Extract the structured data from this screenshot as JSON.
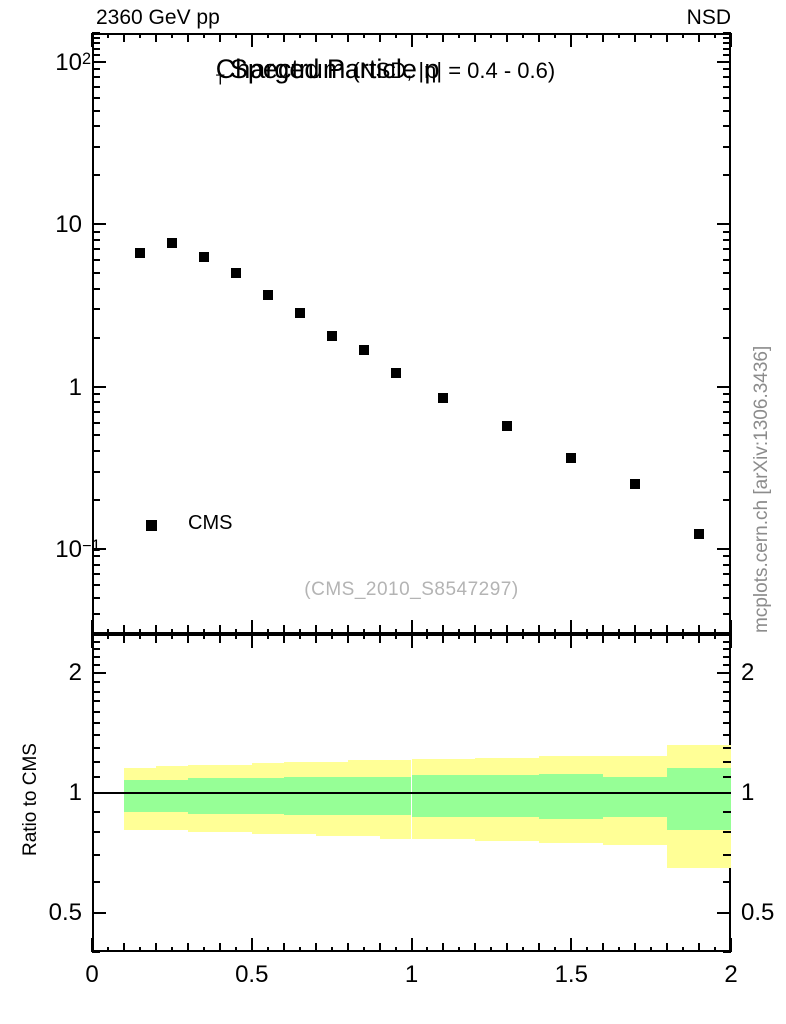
{
  "header": {
    "left": "2360 GeV pp",
    "right": "NSD"
  },
  "title": {
    "part1": "Charged Particle p",
    "sub": "T",
    "part2": "Spectrum",
    "paren": "(NSD, |η| = 0.4 - 0.6)"
  },
  "legend": {
    "label": "CMS",
    "marker": "black-filled-square"
  },
  "watermark": {
    "text": "(CMS_2010_S8547297)"
  },
  "sidenote": {
    "text": "mcplots.cern.ch [arXiv:1306.3436]"
  },
  "colors": {
    "band_outer": "#ffff96",
    "band_inner": "#96ff96",
    "marker": "#000000",
    "frame": "#000000",
    "watermark_gray": "#b4b4b4",
    "sidenote_gray": "#8c8c8c"
  },
  "chart_data": [
    {
      "type": "scatter",
      "panel": "main",
      "title": "Charged Particle pT Spectrum (NSD, |eta| = 0.4 - 0.6)",
      "x_axis": {
        "lim": [
          0,
          2
        ],
        "minor_step": 0.05,
        "medium_step": 0.1,
        "major_step": 0.5,
        "labels_visible": false
      },
      "y_axis": {
        "scale": "log",
        "lim": [
          0.03,
          150
        ],
        "labeled_ticks": [
          {
            "v": 100,
            "label": "10^2"
          },
          {
            "v": 10,
            "label": "10"
          },
          {
            "v": 1,
            "label": "1"
          },
          {
            "v": 0.1,
            "label": "10^−1"
          }
        ]
      },
      "series": [
        {
          "name": "CMS",
          "marker": "black-filled-square",
          "points": [
            [
              0.15,
              6.6
            ],
            [
              0.25,
              7.7
            ],
            [
              0.35,
              6.3
            ],
            [
              0.45,
              5.0
            ],
            [
              0.55,
              3.65
            ],
            [
              0.65,
              2.85
            ],
            [
              0.75,
              2.05
            ],
            [
              0.85,
              1.68
            ],
            [
              0.95,
              1.22
            ],
            [
              1.1,
              0.85
            ],
            [
              1.3,
              0.57
            ],
            [
              1.5,
              0.365
            ],
            [
              1.7,
              0.25
            ],
            [
              1.9,
              0.123
            ]
          ]
        }
      ]
    },
    {
      "type": "band-ratio",
      "panel": "ratio",
      "ylabel": "Ratio to CMS",
      "reference_line": 1.0,
      "x_axis": {
        "lim": [
          0,
          2
        ],
        "minor_step": 0.05,
        "medium_step": 0.1,
        "major_step": 0.5,
        "labeled_ticks": [
          {
            "v": 0,
            "label": "0"
          },
          {
            "v": 0.5,
            "label": "0.5"
          },
          {
            "v": 1,
            "label": "1"
          },
          {
            "v": 1.5,
            "label": "1.5"
          },
          {
            "v": 2,
            "label": "2"
          }
        ]
      },
      "y_axis": {
        "scale": "log",
        "lim": [
          0.4,
          2.51
        ],
        "minor_step": 0.1,
        "labeled_ticks": [
          {
            "v": 2,
            "label": "2"
          },
          {
            "v": 1,
            "label": "1"
          },
          {
            "v": 0.5,
            "label": "0.5"
          }
        ]
      },
      "bands": [
        {
          "x0": 0.1,
          "x1": 0.2,
          "outer": [
            0.81,
            1.16
          ],
          "inner": [
            0.9,
            1.08
          ]
        },
        {
          "x0": 0.2,
          "x1": 0.3,
          "outer": [
            0.81,
            1.17
          ],
          "inner": [
            0.9,
            1.08
          ]
        },
        {
          "x0": 0.3,
          "x1": 0.4,
          "outer": [
            0.8,
            1.18
          ],
          "inner": [
            0.89,
            1.09
          ]
        },
        {
          "x0": 0.4,
          "x1": 0.5,
          "outer": [
            0.8,
            1.18
          ],
          "inner": [
            0.89,
            1.09
          ]
        },
        {
          "x0": 0.5,
          "x1": 0.6,
          "outer": [
            0.79,
            1.19
          ],
          "inner": [
            0.89,
            1.09
          ]
        },
        {
          "x0": 0.6,
          "x1": 0.7,
          "outer": [
            0.79,
            1.2
          ],
          "inner": [
            0.88,
            1.1
          ]
        },
        {
          "x0": 0.7,
          "x1": 0.8,
          "outer": [
            0.78,
            1.2
          ],
          "inner": [
            0.88,
            1.1
          ]
        },
        {
          "x0": 0.8,
          "x1": 0.9,
          "outer": [
            0.78,
            1.21
          ],
          "inner": [
            0.88,
            1.1
          ]
        },
        {
          "x0": 0.9,
          "x1": 1.0,
          "outer": [
            0.77,
            1.21
          ],
          "inner": [
            0.88,
            1.1
          ]
        },
        {
          "x0": 1.0,
          "x1": 1.2,
          "outer": [
            0.77,
            1.22
          ],
          "inner": [
            0.87,
            1.11
          ]
        },
        {
          "x0": 1.2,
          "x1": 1.4,
          "outer": [
            0.76,
            1.23
          ],
          "inner": [
            0.87,
            1.11
          ]
        },
        {
          "x0": 1.4,
          "x1": 1.6,
          "outer": [
            0.75,
            1.24
          ],
          "inner": [
            0.86,
            1.12
          ]
        },
        {
          "x0": 1.6,
          "x1": 1.8,
          "outer": [
            0.74,
            1.24
          ],
          "inner": [
            0.87,
            1.1
          ]
        },
        {
          "x0": 1.8,
          "x1": 2.0,
          "outer": [
            0.65,
            1.32
          ],
          "inner": [
            0.81,
            1.16
          ]
        }
      ]
    }
  ]
}
